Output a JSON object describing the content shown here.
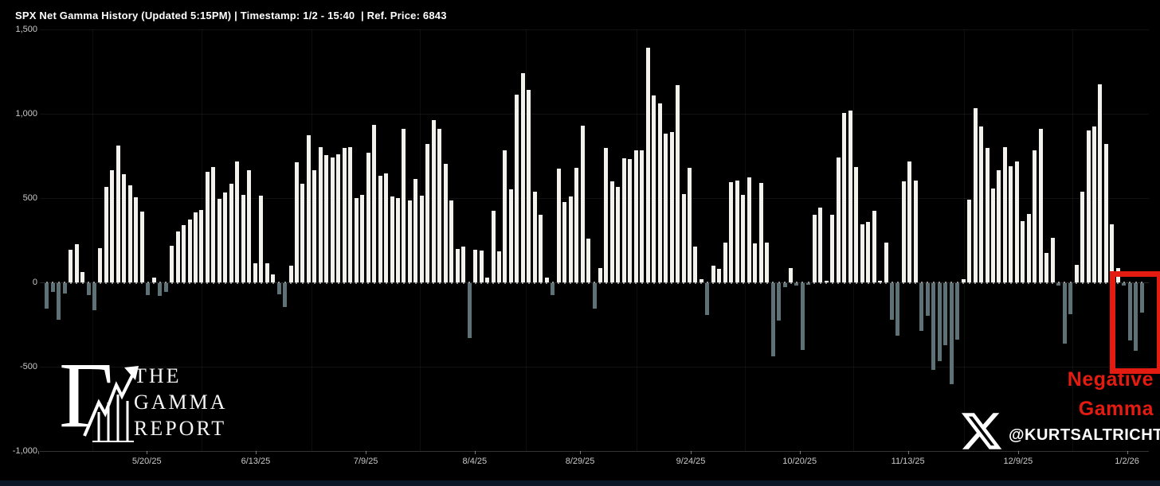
{
  "header": {
    "title": "SPX Net Gamma History (Updated 5:15PM) | Timestamp: 1/2 - 15:40  | Ref. Price: 6843"
  },
  "chart_data": {
    "type": "bar",
    "title": "SPX Net Gamma History",
    "xlabel": "",
    "ylabel": "Net Gamma",
    "ylim": [
      -1000,
      1500
    ],
    "grid": "faint",
    "legend_position": "none",
    "y_ticks": [
      {
        "label": "1,500",
        "value": 1500
      },
      {
        "label": "1,000",
        "value": 1000
      },
      {
        "label": "500",
        "value": 500
      },
      {
        "label": "0",
        "value": 0
      },
      {
        "label": "-500",
        "value": -500
      },
      {
        "label": "-1,000",
        "value": -1000
      }
    ],
    "x_ticks": [
      {
        "label": "5/20/25",
        "i": 16.8
      },
      {
        "label": "6/13/25",
        "i": 35.1
      },
      {
        "label": "7/9/25",
        "i": 53.6
      },
      {
        "label": "8/4/25",
        "i": 71.9
      },
      {
        "label": "8/29/25",
        "i": 89.6
      },
      {
        "label": "9/24/25",
        "i": 108.2
      },
      {
        "label": "10/20/25",
        "i": 126.5
      },
      {
        "label": "11/13/25",
        "i": 144.7
      },
      {
        "label": "12/9/25",
        "i": 163.2
      },
      {
        "label": "1/2/26",
        "i": 181.5
      }
    ],
    "values": [
      -150,
      -50,
      -215,
      -60,
      195,
      225,
      60,
      -70,
      -160,
      205,
      565,
      665,
      810,
      640,
      575,
      505,
      420,
      -70,
      30,
      -75,
      -50,
      215,
      300,
      340,
      375,
      415,
      430,
      655,
      685,
      495,
      535,
      585,
      715,
      520,
      665,
      115,
      515,
      115,
      45,
      -65,
      -140,
      100,
      710,
      585,
      875,
      665,
      800,
      755,
      740,
      760,
      795,
      800,
      500,
      520,
      770,
      935,
      630,
      645,
      510,
      500,
      910,
      485,
      615,
      515,
      820,
      960,
      910,
      705,
      485,
      200,
      210,
      -325,
      195,
      190,
      30,
      425,
      185,
      785,
      550,
      1115,
      1240,
      1140,
      540,
      400,
      30,
      -70,
      675,
      475,
      510,
      680,
      930,
      260,
      -150,
      85,
      795,
      600,
      565,
      735,
      730,
      785,
      785,
      1390,
      1110,
      1060,
      880,
      890,
      1170,
      525,
      680,
      210,
      20,
      -190,
      100,
      80,
      235,
      595,
      605,
      520,
      625,
      230,
      590,
      235,
      -435,
      -220,
      -25,
      85,
      -15,
      -395,
      -10,
      400,
      445,
      10,
      400,
      740,
      1005,
      1020,
      685,
      345,
      360,
      425,
      10,
      235,
      -215,
      -310,
      600,
      715,
      605,
      -285,
      -195,
      -515,
      -460,
      -370,
      -600,
      -335,
      20,
      490,
      1035,
      925,
      795,
      555,
      665,
      800,
      690,
      715,
      365,
      405,
      785,
      910,
      175,
      265,
      -15,
      -360,
      -185,
      105,
      540,
      900,
      925,
      1175,
      820,
      345,
      85,
      -15,
      -340,
      -400,
      -175
    ],
    "colors": {
      "positive_bar": "#f2f1ec",
      "negative_bar": "#5d7176",
      "accent_red": "#e41b10",
      "axis_text": "#c9c9c9",
      "title_text": "#ffffff",
      "background": "#000000"
    }
  },
  "annotation": {
    "line1": "Negative",
    "line2": "Gamma",
    "box_bar_count": 5
  },
  "branding": {
    "logo_line1": "THE",
    "logo_line2": "GAMMA",
    "logo_line3": "REPORT",
    "handle": "@KURTSALTRICHTER",
    "logo_icon": "gamma-letter-with-rising-chart-arrow",
    "handle_icon": "x-twitter-logo"
  }
}
